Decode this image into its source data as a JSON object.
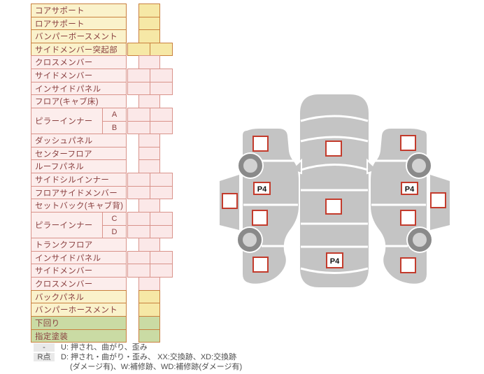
{
  "palette": {
    "yellow": {
      "bg": "#faf2cb",
      "cell": "#f6e8a6",
      "border": "#c9803e",
      "text": "#8a4040"
    },
    "pink": {
      "bg": "#fcedec",
      "cell": "#fbe8e8",
      "border": "#d9938b",
      "text": "#8a4040"
    },
    "green": {
      "bg": "#cadba4",
      "cell": "#cadba4",
      "border": "#c9803e",
      "text": "#8a4040"
    }
  },
  "table": {
    "rows": [
      {
        "label": "コアサポート",
        "color": "yellow",
        "cells": 1
      },
      {
        "label": "ロアサポート",
        "color": "yellow",
        "cells": 1
      },
      {
        "label": "バンパーボースメント",
        "color": "yellow",
        "cells": 1
      },
      {
        "label": "サイドメンバー突起部",
        "color": "yellow",
        "cells": 2
      },
      {
        "label": "クロスメンバー",
        "color": "pink",
        "cells": 1
      },
      {
        "label": "サイドメンバー",
        "color": "pink",
        "cells": 2
      },
      {
        "label": "インサイドパネル",
        "color": "pink",
        "cells": 2
      },
      {
        "label": "フロア(キャブ床)",
        "color": "pink",
        "cells": 1
      },
      {
        "label": "ピラーインナー",
        "color": "pink",
        "cells": 2,
        "subs": [
          "A",
          "B"
        ]
      },
      {
        "label": "ダッシュパネル",
        "color": "pink",
        "cells": 1
      },
      {
        "label": "センターフロア",
        "color": "pink",
        "cells": 1
      },
      {
        "label": "ルーフパネル",
        "color": "pink",
        "cells": 1
      },
      {
        "label": "サイドシルインナー",
        "color": "pink",
        "cells": 2
      },
      {
        "label": "フロアサイドメンバー",
        "color": "pink",
        "cells": 2
      },
      {
        "label": "セットバック(キャブ背)",
        "color": "pink",
        "cells": 1
      },
      {
        "label": "ピラーインナー",
        "color": "pink",
        "cells": 2,
        "subs": [
          "C",
          "D"
        ]
      },
      {
        "label": "トランクフロア",
        "color": "pink",
        "cells": 1
      },
      {
        "label": "インサイドパネル",
        "color": "pink",
        "cells": 2
      },
      {
        "label": "サイドメンバー",
        "color": "pink",
        "cells": 2
      },
      {
        "label": "クロスメンバー",
        "color": "pink",
        "cells": 1
      },
      {
        "label": "バックパネル",
        "color": "yellow",
        "cells": 1
      },
      {
        "label": "バンパーホースメント",
        "color": "yellow",
        "cells": 1
      },
      {
        "label": "下回り",
        "color": "green",
        "cells": 1
      },
      {
        "label": "指定塗装",
        "color": "green",
        "cells": 1
      }
    ]
  },
  "legend": {
    "rows": [
      {
        "badge": "-",
        "text": "U: 押され、曲がり、歪み"
      },
      {
        "badge": "R点",
        "text": "D: 押され・曲がり・歪み、 XX:交換跡、XD:交換跡"
      },
      {
        "badge": "",
        "text": "(ダメージ有)、W:補修跡、WD:補修跡(ダメージ有)"
      }
    ]
  },
  "diagram": {
    "markers": {
      "left_p4": "P4",
      "center_p4": "P4",
      "right_p4": "P4"
    },
    "colors": {
      "body": "#c4c4c4",
      "wheel_ring": "#8a8a8a",
      "wheel_hub": "#d2d2d2",
      "square_border": "#c33b2c"
    }
  }
}
